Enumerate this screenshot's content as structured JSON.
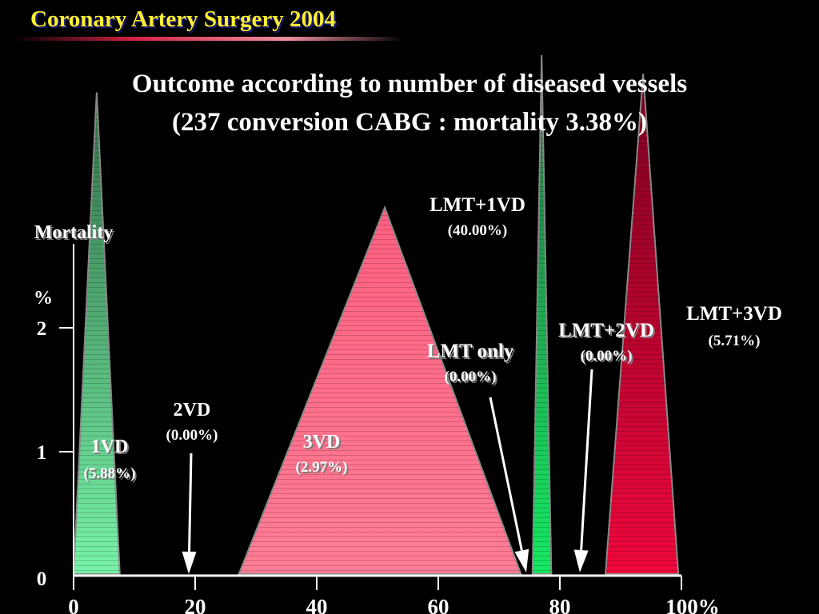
{
  "header": {
    "title": "Coronary Artery Surgery 2004"
  },
  "slide_title": {
    "line1": "Outcome according to number of diseased vessels",
    "line2": "(237 conversion CABG : mortality 3.38%)"
  },
  "chart_data": {
    "type": "area",
    "title": "Outcome according to number of diseased vessels",
    "ylabel": "Mortality",
    "ylabel_unit": "%",
    "xlabel_unit": "%",
    "xlim": [
      0,
      100
    ],
    "ylim": [
      0,
      4.2
    ],
    "xticks": [
      "0",
      "20",
      "40",
      "60",
      "80",
      "100%"
    ],
    "xtick_values": [
      0,
      20,
      40,
      60,
      80,
      100
    ],
    "yticks": [
      "0",
      "1",
      "2"
    ],
    "ytick_values": [
      0,
      1,
      2
    ],
    "series": [
      {
        "name": "1VD",
        "mortality_label": "(5.88%)",
        "mortality": 5.88,
        "x_start": 0,
        "x_peak": 3.8,
        "x_end": 7.6,
        "shape": "triangle",
        "color_top": "#2f6e45",
        "color_bottom": "#78f2a8",
        "shadow": true
      },
      {
        "name": "2VD",
        "mortality_label": "(0.00%)",
        "mortality": 0.0,
        "x_arrow": 19.2,
        "shape": "arrow",
        "shadow": false
      },
      {
        "name": "3VD",
        "mortality_label": "(2.97%)",
        "mortality": 2.97,
        "x_start": 27.2,
        "x_peak": 51.2,
        "x_end": 73.6,
        "shape": "triangle",
        "color_top": "#ff5f7f",
        "color_bottom": "#ff7d95",
        "shadow": true
      },
      {
        "name": "LMT only",
        "mortality_label": "(0.00%)",
        "mortality": 0.0,
        "x_arrow": 74.3,
        "shape": "arrow",
        "shadow": true
      },
      {
        "name": "LMT+1VD",
        "mortality_label": "(40.00%)",
        "mortality": 40.0,
        "x_start": 75.5,
        "x_peak": 77.0,
        "x_end": 78.6,
        "shape": "triangle",
        "color_top": "#2a6a40",
        "color_bottom": "#14e862",
        "shadow": false
      },
      {
        "name": "LMT+2VD",
        "mortality_label": "(0.00%)",
        "mortality": 0.0,
        "x_arrow": 83.2,
        "shape": "arrow",
        "shadow": true
      },
      {
        "name": "LMT+3VD",
        "mortality_label": "(5.71%)",
        "mortality": 5.71,
        "x_start": 87.5,
        "x_peak": 93.7,
        "x_end": 99.5,
        "shape": "triangle",
        "color_top": "#7a0020",
        "color_bottom": "#f0083c",
        "shadow": false
      }
    ]
  }
}
